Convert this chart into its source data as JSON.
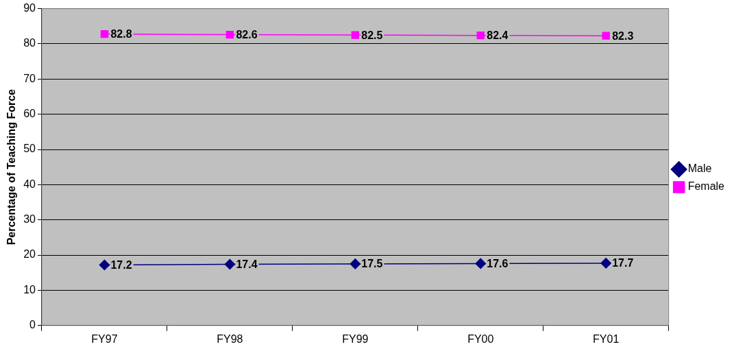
{
  "chart_data": {
    "type": "line",
    "ylabel": "Percentage of Teaching Force",
    "categories": [
      "FY97",
      "FY98",
      "FY99",
      "FY00",
      "FY01"
    ],
    "series": [
      {
        "name": "Male",
        "color": "#000080",
        "marker": "diamond",
        "values": [
          17.2,
          17.4,
          17.5,
          17.6,
          17.7
        ]
      },
      {
        "name": "Female",
        "color": "#ff00ff",
        "marker": "square",
        "values": [
          82.8,
          82.6,
          82.5,
          82.4,
          82.3
        ]
      }
    ],
    "ylim": [
      0,
      90
    ],
    "yticks": [
      0,
      10,
      20,
      30,
      40,
      50,
      60,
      70,
      80,
      90
    ],
    "grid": "y",
    "legend": "right",
    "data_labels": true
  }
}
